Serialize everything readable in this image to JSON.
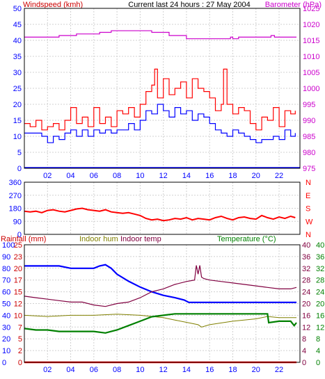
{
  "colors": {
    "wind_gust": "#ff0000",
    "wind_avg": "#0000ff",
    "barometer": "#cc00cc",
    "direction": "#ff0000",
    "rainfall_label": "#cc0000",
    "rainfall_line": "#ff0000",
    "indoor_hum": "#808000",
    "indoor_temp": "#800040",
    "temperature": "#008000",
    "outdoor_hum": "#0000ff",
    "axis_left": "#0000ff",
    "axis_right_pink": "#cc00cc",
    "axis_right_green": "#008000",
    "grid": "#d0d0d0",
    "frame": "#000000"
  },
  "chart_data": [
    {
      "type": "line",
      "title": "Current last 24 hours : 27 May 2004",
      "ylabel": "Windspeed (kmh)",
      "y2label": "Barometer (hPa)",
      "x_ticks": [
        "02",
        "04",
        "06",
        "08",
        "10",
        "12",
        "14",
        "16",
        "18",
        "20",
        "22"
      ],
      "ylim": [
        0,
        50
      ],
      "y_ticks": [
        0,
        5,
        10,
        15,
        20,
        25,
        30,
        35,
        40,
        45,
        50
      ],
      "y2lim": [
        975,
        1025
      ],
      "y2_ticks": [
        975,
        980,
        985,
        990,
        995,
        1000,
        1005,
        1010,
        1015,
        1020,
        1025
      ],
      "grid": true,
      "series": [
        {
          "key": "gust",
          "axis": "left",
          "x": [
            0.0,
            0.5,
            1.0,
            1.5,
            2.0,
            2.5,
            3.0,
            3.5,
            4.0,
            4.5,
            5.0,
            5.5,
            6.0,
            6.5,
            7.0,
            7.5,
            8.0,
            8.5,
            9.0,
            9.5,
            10.0,
            10.5,
            11.0,
            11.25,
            11.5,
            12.0,
            12.5,
            13.0,
            13.5,
            14.0,
            14.5,
            15.0,
            15.5,
            16.0,
            16.5,
            17.0,
            17.2,
            17.5,
            18.0,
            18.5,
            19.0,
            19.5,
            20.0,
            20.5,
            21.0,
            21.5,
            22.0,
            22.5,
            23.0,
            23.4
          ],
          "values": [
            14,
            13,
            15,
            12,
            13,
            14,
            12,
            15,
            19,
            14,
            16,
            13,
            19,
            14,
            16,
            13,
            18,
            17,
            19,
            16,
            20,
            24,
            26,
            31,
            22,
            28,
            23,
            25,
            27,
            22,
            28,
            25,
            24,
            22,
            18,
            20,
            31,
            20,
            17,
            19,
            18,
            14,
            12,
            16,
            15,
            19,
            13,
            18,
            17,
            18
          ]
        },
        {
          "key": "average",
          "axis": "left",
          "x": [
            0.0,
            0.5,
            1.0,
            1.5,
            2.0,
            2.5,
            3.0,
            3.5,
            4.0,
            4.5,
            5.0,
            5.5,
            6.0,
            6.5,
            7.0,
            7.5,
            8.0,
            8.5,
            9.0,
            9.5,
            10.0,
            10.5,
            11.0,
            11.5,
            12.0,
            12.5,
            13.0,
            13.5,
            14.0,
            14.5,
            15.0,
            15.5,
            16.0,
            16.5,
            17.0,
            17.5,
            18.0,
            18.5,
            19.0,
            19.5,
            20.0,
            20.5,
            21.0,
            21.5,
            22.0,
            22.5,
            23.0,
            23.4
          ],
          "values": [
            11,
            11,
            11,
            10,
            8,
            10,
            9,
            11,
            12,
            10,
            12,
            10,
            12,
            11,
            12,
            11,
            12,
            12,
            14,
            12,
            15,
            18,
            17,
            20,
            18,
            16,
            19,
            17,
            18,
            15,
            17,
            16,
            14,
            12,
            11,
            10,
            12,
            11,
            10,
            9,
            8,
            9,
            9,
            10,
            9,
            12,
            10,
            11
          ]
        },
        {
          "key": "barometer",
          "axis": "right",
          "x": [
            0.0,
            2.5,
            3.0,
            4.0,
            4.5,
            6.0,
            6.5,
            7.5,
            8.0,
            10.5,
            11.0,
            12.0,
            12.5,
            13.5,
            14.0,
            16.0,
            16.5,
            17.5,
            17.8,
            18.0,
            18.5,
            21.0,
            21.3,
            21.6,
            23.5
          ],
          "values": [
            1016,
            1016,
            1016.5,
            1016.5,
            1017,
            1017,
            1017.5,
            1018,
            1018,
            1018,
            1017.5,
            1017.5,
            1016.5,
            1016.5,
            1015.5,
            1015.5,
            1015.5,
            1015.5,
            1016,
            1015.5,
            1016,
            1016,
            1016.5,
            1016,
            1016
          ]
        }
      ]
    },
    {
      "type": "line",
      "y_ticks": [
        0,
        90,
        180,
        270,
        360
      ],
      "ylim": [
        0,
        360
      ],
      "y2_ticks": [
        "N",
        "W",
        "S",
        "E",
        "N"
      ],
      "grid": true,
      "series": [
        {
          "key": "direction",
          "x": [
            0.0,
            0.5,
            1.0,
            1.5,
            2.0,
            2.5,
            3.0,
            3.5,
            4.0,
            4.5,
            5.0,
            5.5,
            6.0,
            6.5,
            7.0,
            7.5,
            8.0,
            8.5,
            9.0,
            9.5,
            10.0,
            10.5,
            11.0,
            11.5,
            12.0,
            12.5,
            13.0,
            13.5,
            14.0,
            14.5,
            15.0,
            15.5,
            16.0,
            16.5,
            17.0,
            17.5,
            18.0,
            18.5,
            19.0,
            19.5,
            20.0,
            20.5,
            21.0,
            21.5,
            22.0,
            22.5,
            23.0,
            23.4
          ],
          "values": [
            160,
            155,
            160,
            150,
            165,
            170,
            160,
            155,
            165,
            175,
            180,
            170,
            165,
            160,
            170,
            155,
            150,
            145,
            150,
            140,
            130,
            110,
            100,
            105,
            95,
            100,
            110,
            105,
            115,
            100,
            110,
            105,
            100,
            115,
            125,
            110,
            100,
            115,
            120,
            110,
            105,
            130,
            115,
            105,
            120,
            110,
            125,
            115
          ]
        }
      ]
    },
    {
      "type": "line",
      "labels": [
        "Rainfall (mm)",
        "Indoor hum",
        "Indoor temp",
        "Temperature (°C)"
      ],
      "y_left_hum_ticks": [
        0,
        10,
        20,
        30,
        40,
        50,
        60,
        70,
        80,
        90,
        100
      ],
      "y_left_rain_ticks": [
        0,
        2,
        5,
        7,
        10,
        12,
        15,
        17,
        20,
        23,
        25
      ],
      "y_right_ticks_a": [
        0,
        4,
        8,
        12,
        16,
        20,
        24,
        28,
        32,
        36,
        40
      ],
      "y_right_ticks_b": [
        0,
        4,
        8,
        12,
        16,
        20,
        24,
        28,
        32,
        36,
        40
      ],
      "ylim": [
        0,
        100
      ],
      "y2lim": [
        0,
        40
      ],
      "grid": true,
      "series": [
        {
          "key": "outdoor_hum",
          "axis": "left",
          "x": [
            0.0,
            1.0,
            2.0,
            3.0,
            4.0,
            5.0,
            6.0,
            6.5,
            7.0,
            7.5,
            8.0,
            9.0,
            10.0,
            11.0,
            12.0,
            13.0,
            13.8,
            14.2,
            15.0,
            16.0,
            18.0,
            20.0,
            22.0,
            23.5
          ],
          "values": [
            82,
            82,
            82,
            82,
            80,
            80,
            80,
            82,
            83,
            80,
            75,
            69,
            64,
            60,
            57,
            55,
            53,
            51,
            51,
            51,
            51,
            51,
            51,
            51
          ]
        },
        {
          "key": "indoor_hum",
          "axis": "left",
          "x": [
            0.0,
            2.0,
            4.0,
            6.0,
            8.0,
            10.0,
            12.0,
            13.0,
            14.0,
            15.0,
            15.3,
            16.0,
            18.0,
            20.0,
            21.0,
            22.0,
            23.5
          ],
          "values": [
            40,
            39,
            40,
            40,
            41,
            40,
            38,
            36,
            34,
            32,
            30,
            32,
            35,
            37,
            39,
            38,
            38
          ]
        },
        {
          "key": "indoor_temp",
          "axis": "right",
          "x": [
            0.0,
            1.0,
            2.0,
            3.0,
            4.0,
            5.0,
            6.0,
            7.0,
            8.0,
            9.0,
            10.0,
            11.0,
            12.0,
            13.0,
            14.0,
            14.7,
            14.85,
            15.0,
            15.15,
            15.3,
            15.5,
            16.0,
            17.0,
            18.0,
            19.0,
            20.0,
            21.0,
            22.0,
            23.0,
            23.5
          ],
          "values": [
            22.5,
            22,
            21.5,
            21,
            20.5,
            20.5,
            19.5,
            19,
            20,
            20.5,
            22,
            24,
            25,
            26.5,
            27.5,
            28,
            33,
            30,
            33,
            29,
            28.5,
            28,
            27.5,
            27,
            26.5,
            26,
            25.5,
            25,
            25,
            25.5
          ]
        },
        {
          "key": "temperature",
          "axis": "right",
          "x": [
            0.0,
            1.0,
            2.0,
            3.0,
            4.0,
            5.0,
            6.0,
            7.0,
            7.5,
            8.0,
            9.0,
            10.0,
            11.0,
            12.0,
            13.0,
            14.0,
            16.0,
            18.0,
            20.0,
            21.0,
            21.1,
            22.0,
            23.0,
            23.3,
            23.5
          ],
          "values": [
            11.5,
            11,
            11,
            10.5,
            10.5,
            10.5,
            10.5,
            10,
            10.5,
            11,
            12.5,
            14,
            15.5,
            16,
            16.5,
            16.5,
            16.5,
            16.5,
            16.5,
            16.5,
            13.5,
            14,
            14,
            12.5,
            13.5
          ]
        },
        {
          "key": "rainfall",
          "axis": "rain",
          "x": [
            0.0,
            23.5
          ],
          "values": [
            0,
            0
          ]
        }
      ]
    }
  ]
}
